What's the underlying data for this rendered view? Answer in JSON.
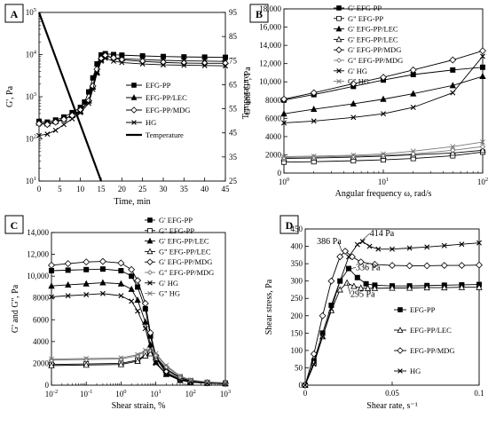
{
  "chart_data": [
    {
      "panel": "A",
      "type": "line",
      "xlabel": "Time, min",
      "ylabel": "G', Pa",
      "ylabel_right": "Temperature",
      "xlim": [
        0,
        45
      ],
      "ylim": [
        10,
        100000
      ],
      "yscale": "log",
      "ylim_right": [
        25,
        95
      ],
      "x_ticks": [
        "0",
        "5",
        "10",
        "15",
        "20",
        "25",
        "30",
        "35",
        "40",
        "45"
      ],
      "y_ticks": [
        {
          "base": "10",
          "exp": "1"
        },
        {
          "base": "10",
          "exp": "2"
        },
        {
          "base": "10",
          "exp": "3"
        },
        {
          "base": "10",
          "exp": "4"
        },
        {
          "base": "10",
          "exp": "5"
        }
      ],
      "y_right_ticks": [
        "25",
        "35",
        "45",
        "55",
        "65",
        "75",
        "85",
        "95"
      ],
      "legend_position": "right",
      "series": [
        {
          "name": "EFG-PP",
          "marker": "square-filled",
          "x": [
            0,
            2,
            4,
            6,
            8,
            10,
            11,
            12,
            13,
            14,
            15,
            16,
            18,
            20,
            25,
            30,
            35,
            40,
            45
          ],
          "y": [
            260,
            250,
            280,
            330,
            420,
            560,
            750,
            1300,
            2800,
            6000,
            9800,
            10500,
            10000,
            9700,
            9300,
            9000,
            8800,
            8700,
            8600
          ]
        },
        {
          "name": "EFG-PP/LEC",
          "marker": "triangle-filled",
          "x": [
            0,
            2,
            4,
            6,
            8,
            10,
            12,
            13,
            14,
            15,
            16,
            18,
            20,
            25,
            30,
            35,
            40,
            45
          ],
          "y": [
            240,
            230,
            260,
            300,
            360,
            450,
            800,
            1700,
            3800,
            7500,
            9000,
            8500,
            8000,
            7600,
            7300,
            7100,
            7000,
            6900
          ]
        },
        {
          "name": "EFG-PP/MDG",
          "marker": "diamond-open",
          "x": [
            0,
            2,
            4,
            6,
            8,
            10,
            12,
            13,
            14,
            15,
            16,
            18,
            20,
            25,
            30,
            35,
            40,
            45
          ],
          "y": [
            230,
            220,
            250,
            290,
            360,
            480,
            800,
            1800,
            4500,
            8000,
            9500,
            8400,
            7500,
            6900,
            6500,
            6300,
            6200,
            6200
          ]
        },
        {
          "name": "HG",
          "marker": "x",
          "x": [
            0,
            2,
            4,
            6,
            8,
            10,
            12,
            13,
            14,
            15,
            16,
            18,
            20,
            25,
            30,
            35,
            40,
            45
          ],
          "y": [
            120,
            130,
            160,
            220,
            300,
            420,
            700,
            1500,
            3600,
            7000,
            8200,
            7000,
            6500,
            6000,
            5700,
            5600,
            5500,
            5400
          ]
        },
        {
          "name": "Temperature",
          "marker": "none",
          "axis": "right",
          "x": [
            0,
            15
          ],
          "y": [
            95,
            25
          ]
        }
      ]
    },
    {
      "panel": "B",
      "type": "line",
      "xlabel": "Angular frequency ω, rad/s",
      "ylabel": "G' and G'', Pa",
      "xscale": "log",
      "xlim": [
        1,
        100
      ],
      "ylim": [
        0,
        18000
      ],
      "x_ticks": [
        {
          "base": "10",
          "exp": "0"
        },
        {
          "base": "10",
          "exp": "1"
        },
        {
          "base": "10",
          "exp": "2"
        }
      ],
      "y_ticks": [
        "0",
        "2000",
        "4000",
        "6000",
        "8000",
        "10,000",
        "12,000",
        "14,000",
        "16,000",
        "18,000"
      ],
      "legend_position": "top-left",
      "series": [
        {
          "name": "G' EFG-PP",
          "marker": "square-filled",
          "x": [
            1,
            2,
            5,
            10,
            20,
            50,
            100
          ],
          "y": [
            8000,
            8600,
            9500,
            10200,
            10800,
            11300,
            11600
          ]
        },
        {
          "name": "G\" EFG-PP",
          "marker": "square-open",
          "x": [
            1,
            2,
            5,
            10,
            20,
            50,
            100
          ],
          "y": [
            1200,
            1250,
            1350,
            1450,
            1600,
            1900,
            2300
          ]
        },
        {
          "name": "G' EFG-PP/LEC",
          "marker": "triangle-filled",
          "x": [
            1,
            2,
            5,
            10,
            20,
            50,
            100
          ],
          "y": [
            6500,
            7000,
            7600,
            8100,
            8700,
            9600,
            10600
          ]
        },
        {
          "name": "G' EFG-PP/LEC",
          "marker": "triangle-open",
          "x": [
            1,
            2,
            5,
            10,
            20,
            50,
            100
          ],
          "y": [
            1600,
            1650,
            1750,
            1850,
            2000,
            2200,
            2500
          ]
        },
        {
          "name": "G' EFG-PP/MDG",
          "marker": "diamond-open",
          "x": [
            1,
            2,
            5,
            10,
            20,
            50,
            100
          ],
          "y": [
            8100,
            8800,
            9800,
            10500,
            11300,
            12400,
            13400
          ]
        },
        {
          "name": "G\" EFG-PP/MDG",
          "marker": "diamond-small",
          "x": [
            1,
            2,
            5,
            10,
            20,
            50,
            100
          ],
          "y": [
            1700,
            1750,
            1850,
            1950,
            2100,
            2500,
            2900
          ]
        },
        {
          "name": "G' HG",
          "marker": "x",
          "x": [
            1,
            2,
            5,
            10,
            20,
            50,
            100
          ],
          "y": [
            5500,
            5700,
            6100,
            6500,
            7200,
            8800,
            12800
          ]
        },
        {
          "name": "G\" HG",
          "marker": "x-light",
          "x": [
            1,
            2,
            5,
            10,
            20,
            50,
            100
          ],
          "y": [
            1800,
            1850,
            1950,
            2100,
            2400,
            2900,
            3400
          ]
        }
      ]
    },
    {
      "panel": "C",
      "type": "line",
      "xlabel": "Shear strain, %",
      "ylabel": "G' and G'', Pa",
      "xscale": "log",
      "xlim": [
        0.01,
        1000
      ],
      "ylim": [
        0,
        14000
      ],
      "x_ticks": [
        {
          "base": "10",
          "exp": "-2"
        },
        {
          "base": "10",
          "exp": "-1"
        },
        {
          "base": "10",
          "exp": "0"
        },
        {
          "base": "10",
          "exp": "1"
        },
        {
          "base": "10",
          "exp": "2"
        },
        {
          "base": "10",
          "exp": "3"
        }
      ],
      "y_ticks": [
        "0",
        "2000",
        "4000",
        "6000",
        "8000",
        "10,000",
        "12,000",
        "14,000"
      ],
      "legend_position": "top-right",
      "series": [
        {
          "name": "G' EFG-PP",
          "marker": "square-filled",
          "x": [
            0.01,
            0.03,
            0.1,
            0.3,
            1,
            2,
            3,
            5,
            7,
            10,
            20,
            50,
            100,
            300,
            1000
          ],
          "y": [
            10500,
            10550,
            10600,
            10650,
            10500,
            10000,
            9000,
            7000,
            4500,
            2500,
            1100,
            500,
            300,
            200,
            150
          ]
        },
        {
          "name": "G\" EFG-PP",
          "marker": "square-open",
          "x": [
            0.01,
            0.1,
            1,
            3,
            5,
            7,
            10,
            20,
            50,
            100,
            300,
            1000
          ],
          "y": [
            1900,
            1950,
            2000,
            2300,
            2800,
            3000,
            2600,
            1500,
            700,
            400,
            250,
            200
          ]
        },
        {
          "name": "G' EFG-PP/LEC",
          "marker": "triangle-filled",
          "x": [
            0.01,
            0.03,
            0.1,
            0.3,
            1,
            2,
            3,
            5,
            7,
            10,
            20,
            50,
            100,
            300,
            1000
          ],
          "y": [
            9100,
            9200,
            9300,
            9400,
            9300,
            8800,
            7800,
            5800,
            3700,
            2100,
            1000,
            450,
            280,
            180,
            140
          ]
        },
        {
          "name": "G\" EFG-PP/LEC",
          "marker": "triangle-open",
          "x": [
            0.01,
            0.1,
            1,
            3,
            5,
            7,
            10,
            20,
            50,
            100,
            300,
            1000
          ],
          "y": [
            1800,
            1850,
            1900,
            2200,
            2700,
            2900,
            2500,
            1400,
            650,
            380,
            240,
            190
          ]
        },
        {
          "name": "G' EFG-PP/MDG",
          "marker": "diamond-open",
          "x": [
            0.01,
            0.03,
            0.1,
            0.3,
            1,
            2,
            3,
            5,
            7,
            10,
            20,
            50,
            100,
            300,
            1000
          ],
          "y": [
            11000,
            11150,
            11300,
            11350,
            11200,
            10600,
            9600,
            7500,
            4800,
            2700,
            1200,
            550,
            320,
            210,
            160
          ]
        },
        {
          "name": "G\" EFG-PP/MDG",
          "marker": "diamond-small",
          "x": [
            0.01,
            0.1,
            1,
            3,
            5,
            7,
            10,
            20,
            50,
            100,
            300,
            1000
          ],
          "y": [
            2300,
            2350,
            2400,
            2700,
            3100,
            3200,
            2800,
            1700,
            800,
            450,
            280,
            210
          ]
        },
        {
          "name": "G' HG",
          "marker": "x",
          "x": [
            0.01,
            0.03,
            0.1,
            0.3,
            1,
            2,
            3,
            5,
            7,
            10,
            20,
            50,
            100,
            300,
            1000
          ],
          "y": [
            8100,
            8200,
            8300,
            8400,
            8200,
            7700,
            6800,
            5200,
            3400,
            2000,
            1000,
            450,
            280,
            180,
            140
          ]
        },
        {
          "name": "G\" HG",
          "marker": "x-light",
          "x": [
            0.01,
            0.1,
            1,
            3,
            5,
            7,
            10,
            20,
            50,
            100,
            300,
            1000
          ],
          "y": [
            2400,
            2450,
            2500,
            2800,
            3200,
            3300,
            2900,
            1800,
            850,
            480,
            300,
            220
          ]
        }
      ]
    },
    {
      "panel": "D",
      "type": "line",
      "xlabel": "Shear rate, s⁻¹",
      "ylabel": "Shear stress, Pa",
      "xlim": [
        0,
        0.1
      ],
      "ylim": [
        0,
        450
      ],
      "x_ticks": [
        "0",
        "0.05",
        "0.1"
      ],
      "y_ticks": [
        "0",
        "50",
        "100",
        "150",
        "200",
        "250",
        "300",
        "350",
        "400",
        "450"
      ],
      "legend_position": "right",
      "annotations": [
        {
          "text": "414 Pa",
          "x": 0.032,
          "y": 414
        },
        {
          "text": "386 Pa",
          "x": 0.021,
          "y": 386
        },
        {
          "text": "336 Pa",
          "x": 0.026,
          "y": 336
        },
        {
          "text": "295 Pa",
          "x": 0.024,
          "y": 295
        }
      ],
      "series": [
        {
          "name": "EFG-PP",
          "marker": "square-filled",
          "x": [
            0,
            0.005,
            0.01,
            0.015,
            0.02,
            0.025,
            0.03,
            0.035,
            0.04,
            0.05,
            0.06,
            0.07,
            0.08,
            0.09,
            0.1
          ],
          "y": [
            0,
            70,
            150,
            230,
            300,
            336,
            310,
            292,
            288,
            286,
            286,
            287,
            288,
            289,
            290
          ]
        },
        {
          "name": "EFG-PP/LEC",
          "marker": "triangle-open",
          "x": [
            0,
            0.005,
            0.01,
            0.015,
            0.02,
            0.024,
            0.028,
            0.032,
            0.036,
            0.04,
            0.05,
            0.06,
            0.07,
            0.08,
            0.09,
            0.1
          ],
          "y": [
            0,
            65,
            140,
            215,
            275,
            295,
            285,
            280,
            279,
            279,
            280,
            280,
            281,
            281,
            282,
            282
          ]
        },
        {
          "name": "EFG-PP/MDG",
          "marker": "diamond-open",
          "x": [
            0,
            0.005,
            0.01,
            0.015,
            0.02,
            0.023,
            0.027,
            0.032,
            0.04,
            0.05,
            0.06,
            0.07,
            0.08,
            0.09,
            0.1
          ],
          "y": [
            0,
            90,
            200,
            300,
            370,
            386,
            370,
            355,
            348,
            345,
            344,
            344,
            345,
            345,
            346
          ]
        },
        {
          "name": "HG",
          "marker": "x",
          "x": [
            0,
            0.005,
            0.01,
            0.015,
            0.02,
            0.025,
            0.03,
            0.033,
            0.037,
            0.042,
            0.05,
            0.06,
            0.07,
            0.08,
            0.09,
            0.1
          ],
          "y": [
            0,
            60,
            140,
            220,
            300,
            370,
            405,
            414,
            400,
            392,
            392,
            395,
            398,
            402,
            406,
            410
          ]
        }
      ]
    }
  ]
}
